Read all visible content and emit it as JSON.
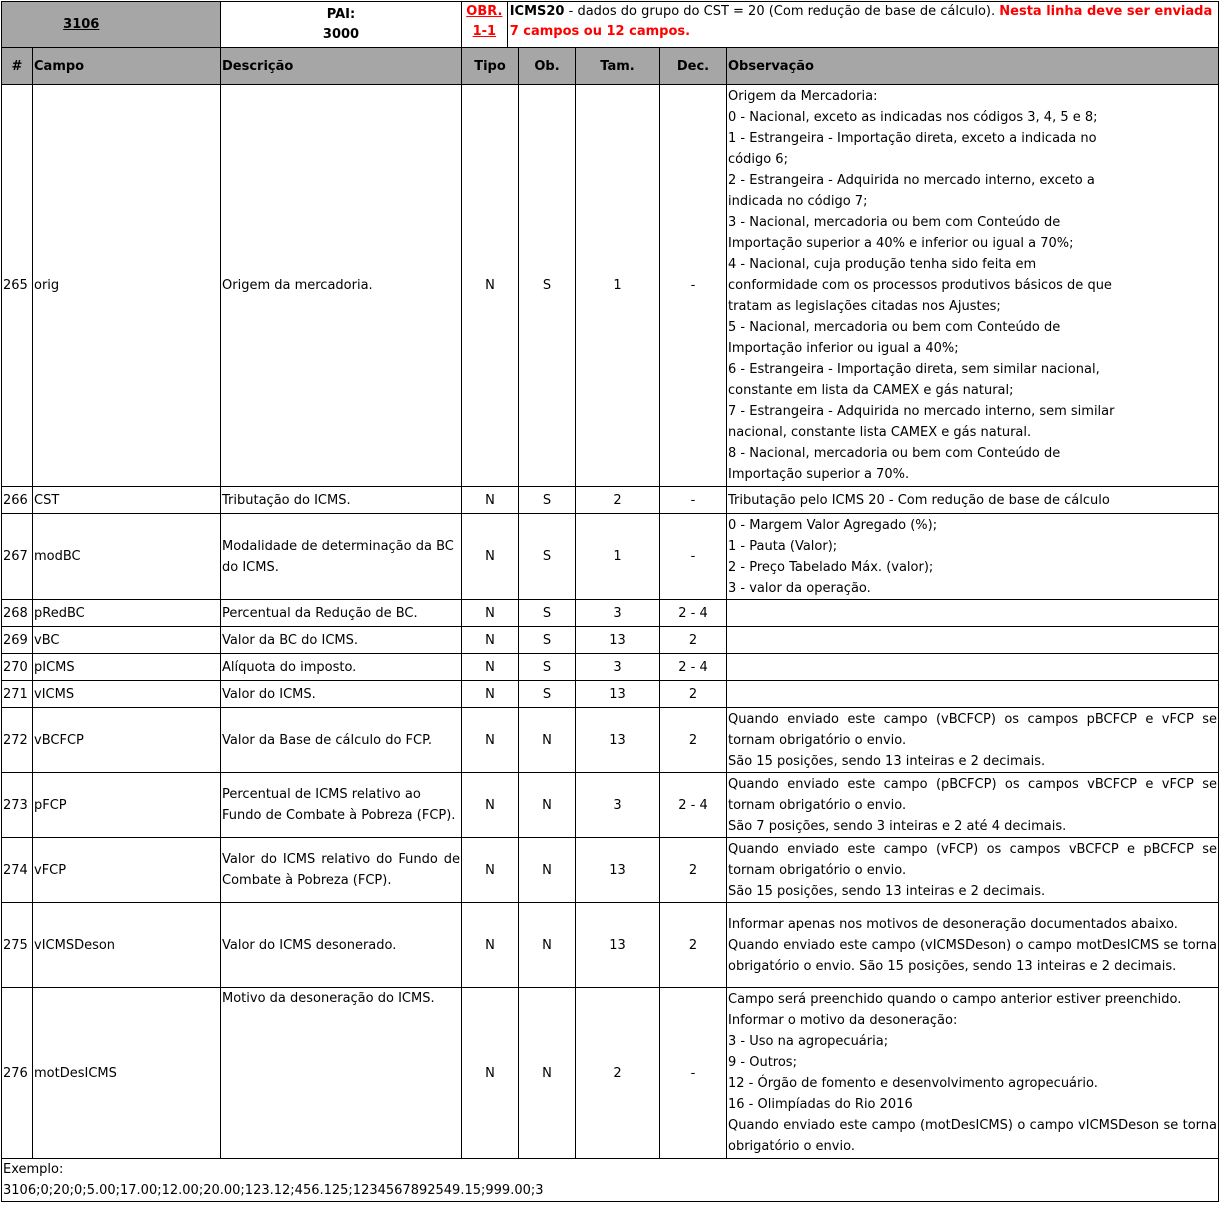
{
  "header": {
    "record": "3106",
    "pai_label": "PAI:",
    "pai_value": "3000",
    "obr_label": "OBR.",
    "obr_value": "1-1",
    "group_name": "ICMS20",
    "group_desc": " - dados do grupo do CST = 20 (Com redução de base de cálculo). ",
    "note": "Nesta linha deve ser enviada 7 campos ou 12 campos."
  },
  "columns": [
    "#",
    "Campo",
    "Descrição",
    "Tipo",
    "Ob.",
    "Tam.",
    "Dec.",
    "Observação"
  ],
  "rows": [
    {
      "num": "265",
      "campo": "orig",
      "desc": "Origem da mercadoria.",
      "tipo": "N",
      "ob": "S",
      "tam": "1",
      "dec": "-",
      "obs": [
        "Origem da Mercadoria:",
        "0 - Nacional, exceto as indicadas nos códigos 3, 4, 5 e 8;",
        "1 - Estrangeira - Importação direta, exceto a indicada no código 6;",
        "2 - Estrangeira - Adquirida no mercado interno, exceto a indicada no código 7;",
        "3 - Nacional, mercadoria ou bem com Conteúdo de Importação superior a 40% e inferior ou igual a 70%;",
        "4 - Nacional, cuja produção tenha sido feita em conformidade com os processos produtivos básicos de que tratam as legislações citadas nos Ajustes;",
        "5 - Nacional, mercadoria ou bem com Conteúdo de Importação inferior ou igual a 40%;",
        "6 - Estrangeira - Importação direta, sem similar nacional, constante em lista da CAMEX e gás natural;",
        "7 - Estrangeira - Adquirida no mercado interno, sem similar nacional, constante lista CAMEX e gás natural.",
        "8 - Nacional, mercadoria ou bem com Conteúdo de Importação superior a 70%."
      ]
    },
    {
      "num": "266",
      "campo": "CST",
      "desc": "Tributação do ICMS.",
      "tipo": "N",
      "ob": "S",
      "tam": "2",
      "dec": "-",
      "obs": [
        " Tributação pelo ICMS 20 - Com redução de base de cálculo"
      ]
    },
    {
      "num": "267",
      "campo": "modBC",
      "desc": "Modalidade de determinação da BC do ICMS.",
      "tipo": "N",
      "ob": "S",
      "tam": "1",
      "dec": "-",
      "obs": [
        "0 - Margem Valor Agregado (%);",
        "1 - Pauta (Valor);",
        "2 - Preço Tabelado Máx. (valor);",
        "3 - valor da operação."
      ]
    },
    {
      "num": "268",
      "campo": "pRedBC",
      "desc": "Percentual da Redução de BC.",
      "tipo": "N",
      "ob": "S",
      "tam": "3",
      "dec": "2 - 4",
      "obs": []
    },
    {
      "num": "269",
      "campo": "vBC",
      "desc": "Valor da BC do ICMS.",
      "tipo": "N",
      "ob": "S",
      "tam": "13",
      "dec": "2",
      "obs": []
    },
    {
      "num": "270",
      "campo": "pICMS",
      "desc": "Alíquota do imposto.",
      "tipo": "N",
      "ob": "S",
      "tam": "3",
      "dec": "2 - 4",
      "obs": []
    },
    {
      "num": "271",
      "campo": "vICMS",
      "desc": "Valor do ICMS.",
      "tipo": "N",
      "ob": "S",
      "tam": "13",
      "dec": "2",
      "obs": []
    },
    {
      "num": "272",
      "campo": "vBCFCP",
      "desc": "Valor da Base de cálculo do FCP.",
      "tipo": "N",
      "ob": "N",
      "tam": "13",
      "dec": "2",
      "obs": [
        "Quando enviado este campo (vBCFCP) os campos pBCFCP e vFCP se tornam obrigatório o envio.",
        "São 15 posições, sendo 13 inteiras e 2 decimais."
      ]
    },
    {
      "num": "273",
      "campo": "pFCP",
      "desc": "Percentual de ICMS relativo ao Fundo de Combate à Pobreza (FCP).",
      "tipo": "N",
      "ob": "N",
      "tam": "3",
      "dec": "2 - 4",
      "obs": [
        "Quando enviado este campo (pBCFCP) os campos vBCFCP e vFCP se tornam obrigatório o envio.",
        "São 7 posições, sendo 3 inteiras e 2 até 4 decimais."
      ]
    },
    {
      "num": "274",
      "campo": "vFCP",
      "desc": "Valor do ICMS relativo do Fundo de Combate à Pobreza (FCP).",
      "tipo": "N",
      "ob": "N",
      "tam": "13",
      "dec": "2",
      "obs": [
        "Quando enviado este campo (vFCP) os campos vBCFCP e pBCFCP se tornam obrigatório o envio.",
        "São 15 posições, sendo 13 inteiras e 2 decimais."
      ]
    },
    {
      "num": "275",
      "campo": "vICMSDeson",
      "desc": "Valor do ICMS desonerado.",
      "tipo": "N",
      "ob": "N",
      "tam": "13",
      "dec": "2",
      "obs": [
        "Informar apenas nos motivos de desoneração documentados abaixo.",
        "Quando enviado este campo (vICMSDeson) o campo motDesICMS se torna obrigatório o envio. São 15 posições, sendo 13 inteiras e 2 decimais."
      ]
    },
    {
      "num": "276",
      "campo": "motDesICMS",
      "desc": "Motivo da desoneração do ICMS.",
      "tipo": "N",
      "ob": "N",
      "tam": "2",
      "dec": "-",
      "obs": [
        "Campo será preenchido quando o campo anterior estiver preenchido.",
        "Informar o motivo da desoneração:",
        "3 - Uso na agropecuária;",
        "9 - Outros;",
        "12 - Órgão de fomento e desenvolvimento agropecuário.",
        "16 - Olimpíadas do Rio 2016",
        "Quando enviado este campo (motDesICMS) o campo vICMSDeson se torna obrigatório o envio."
      ]
    }
  ],
  "example": {
    "label": "Exemplo:",
    "value": "3106;0;20;0;5.00;17.00;12.00;20.00;123.12;456.125;1234567892549.15;999.00;3"
  }
}
